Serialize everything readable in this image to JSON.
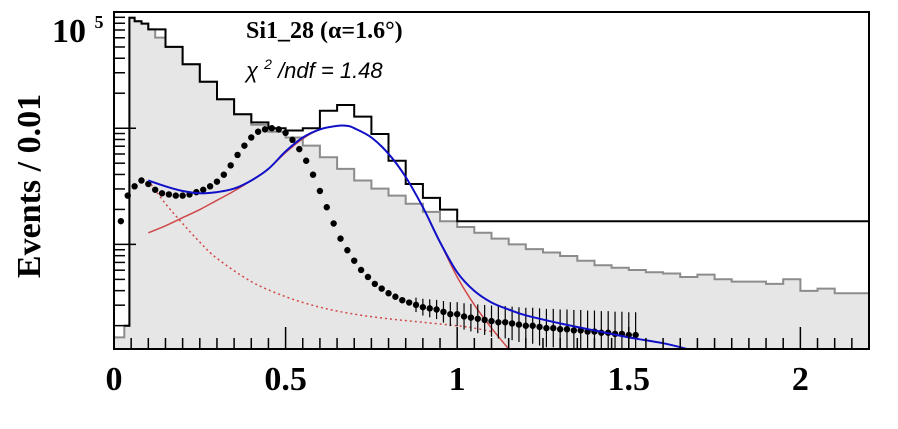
{
  "chart_data": {
    "type": "line",
    "title": "Si1_28 (α=1.6°)",
    "stat_prefix": "χ",
    "stat_sup": "2",
    "stat_rest": "/ndf = 1.48",
    "ylabel": "Events / 0.01",
    "y_top_label_base": "10",
    "y_top_label_exp": "5",
    "xlim": [
      0,
      2.2
    ],
    "x_ticks": [
      0,
      0.5,
      1,
      1.5,
      2
    ],
    "x_tick_labels": [
      "0",
      "0.5",
      "1",
      "1.5",
      "2"
    ],
    "ylim_log10": [
      2.1,
      5.0
    ],
    "y_scale": "log",
    "colors": {
      "gray_fill": "#e6e6e6",
      "gray_line": "#8c8c8c",
      "black_hist": "#000000",
      "fit_total": "#1010c8",
      "fit_component": "#d04848"
    },
    "series": [
      {
        "key": "gray_hist",
        "x": [
          0.0,
          0.03,
          0.045,
          0.06,
          0.08,
          0.1,
          0.12,
          0.15,
          0.2,
          0.25,
          0.3,
          0.35,
          0.4,
          0.45,
          0.5,
          0.55,
          0.6,
          0.65,
          0.7,
          0.75,
          0.8,
          0.85,
          0.9,
          0.95,
          1.0,
          1.05,
          1.1,
          1.15,
          1.2,
          1.25,
          1.3,
          1.35,
          1.4,
          1.45,
          1.5,
          1.55,
          1.6,
          1.65,
          1.7,
          1.75,
          1.8,
          1.85,
          1.9,
          1.95,
          2.0,
          2.05,
          2.1,
          2.15,
          2.2
        ],
        "y": [
          2.2,
          2.3,
          4.95,
          4.92,
          4.9,
          4.85,
          4.78,
          4.7,
          4.55,
          4.4,
          4.25,
          4.12,
          4.03,
          3.97,
          3.92,
          3.85,
          3.75,
          3.65,
          3.55,
          3.48,
          3.42,
          3.35,
          3.28,
          3.2,
          3.15,
          3.1,
          3.05,
          3.0,
          2.96,
          2.93,
          2.9,
          2.86,
          2.82,
          2.8,
          2.78,
          2.76,
          2.75,
          2.72,
          2.74,
          2.7,
          2.68,
          2.68,
          2.66,
          2.7,
          2.6,
          2.62,
          2.58,
          2.58,
          2.55
        ]
      },
      {
        "key": "black_hist",
        "x": [
          0.03,
          0.045,
          0.06,
          0.08,
          0.1,
          0.15,
          0.2,
          0.25,
          0.3,
          0.35,
          0.4,
          0.45,
          0.5,
          0.55,
          0.6,
          0.65,
          0.7,
          0.75,
          0.8,
          0.85,
          0.9,
          0.95,
          1.0
        ],
        "y": [
          2.3,
          4.95,
          4.92,
          4.9,
          4.85,
          4.7,
          4.55,
          4.4,
          4.25,
          4.12,
          4.05,
          4.0,
          3.98,
          4.0,
          4.15,
          4.2,
          4.1,
          3.95,
          3.72,
          3.52,
          3.4,
          3.3,
          3.2
        ]
      },
      {
        "key": "data_points",
        "x": [
          0.02,
          0.04,
          0.06,
          0.08,
          0.1,
          0.12,
          0.14,
          0.16,
          0.18,
          0.2,
          0.22,
          0.24,
          0.26,
          0.28,
          0.3,
          0.32,
          0.34,
          0.36,
          0.38,
          0.4,
          0.42,
          0.44,
          0.46,
          0.48,
          0.5,
          0.52,
          0.54,
          0.56,
          0.58,
          0.6,
          0.62,
          0.64,
          0.66,
          0.68,
          0.7,
          0.72,
          0.74,
          0.76,
          0.78,
          0.8,
          0.82,
          0.84,
          0.86,
          0.88,
          0.9,
          0.92,
          0.94,
          0.96,
          0.98,
          1.0,
          1.02,
          1.04,
          1.06,
          1.08,
          1.1,
          1.12,
          1.14,
          1.16,
          1.18,
          1.2,
          1.22,
          1.24,
          1.26,
          1.28,
          1.3,
          1.32,
          1.34,
          1.36,
          1.38,
          1.4,
          1.42,
          1.44,
          1.46,
          1.48,
          1.5,
          1.52
        ],
        "y": [
          3.2,
          3.42,
          3.5,
          3.55,
          3.52,
          3.47,
          3.44,
          3.43,
          3.42,
          3.42,
          3.43,
          3.45,
          3.47,
          3.5,
          3.54,
          3.6,
          3.68,
          3.77,
          3.85,
          3.92,
          3.97,
          3.99,
          4.0,
          3.99,
          3.96,
          3.9,
          3.82,
          3.72,
          3.6,
          3.46,
          3.32,
          3.18,
          3.05,
          2.95,
          2.86,
          2.78,
          2.72,
          2.66,
          2.62,
          2.58,
          2.55,
          2.52,
          2.5,
          2.48,
          2.46,
          2.45,
          2.44,
          2.42,
          2.4,
          2.4,
          2.38,
          2.37,
          2.36,
          2.35,
          2.34,
          2.33,
          2.33,
          2.32,
          2.31,
          2.3,
          2.3,
          2.29,
          2.28,
          2.28,
          2.27,
          2.27,
          2.26,
          2.26,
          2.25,
          2.25,
          2.24,
          2.24,
          2.23,
          2.23,
          2.22,
          2.22
        ]
      },
      {
        "key": "fit_total",
        "x": [
          0.1,
          0.15,
          0.2,
          0.25,
          0.3,
          0.35,
          0.4,
          0.45,
          0.5,
          0.55,
          0.6,
          0.65,
          0.68,
          0.7,
          0.75,
          0.8,
          0.85,
          0.9,
          0.95,
          1.0,
          1.05,
          1.1,
          1.15,
          1.2,
          1.3,
          1.4,
          1.5,
          1.6,
          1.67
        ],
        "y": [
          3.55,
          3.5,
          3.46,
          3.44,
          3.45,
          3.48,
          3.55,
          3.65,
          3.8,
          3.92,
          3.99,
          4.02,
          4.02,
          4.0,
          3.92,
          3.78,
          3.58,
          3.32,
          3.02,
          2.76,
          2.6,
          2.5,
          2.44,
          2.39,
          2.32,
          2.26,
          2.2,
          2.15,
          2.1
        ]
      },
      {
        "key": "fit_component_peak",
        "x": [
          0.1,
          0.15,
          0.2,
          0.25,
          0.3,
          0.35,
          0.4,
          0.45,
          0.5,
          0.55,
          0.6,
          0.65,
          0.68,
          0.7,
          0.75,
          0.8,
          0.85,
          0.9,
          0.95,
          1.0,
          1.05,
          1.1,
          1.15
        ],
        "y": [
          3.1,
          3.16,
          3.23,
          3.3,
          3.38,
          3.46,
          3.55,
          3.65,
          3.79,
          3.91,
          3.99,
          4.02,
          4.02,
          4.0,
          3.92,
          3.78,
          3.58,
          3.32,
          3.02,
          2.72,
          2.48,
          2.28,
          2.1
        ]
      },
      {
        "key": "fit_component_background",
        "x": [
          0.1,
          0.15,
          0.2,
          0.25,
          0.3,
          0.4,
          0.5,
          0.6,
          0.7,
          0.8,
          0.9,
          1.0,
          1.05,
          1.1
        ],
        "y": [
          3.55,
          3.35,
          3.18,
          3.02,
          2.88,
          2.68,
          2.55,
          2.46,
          2.4,
          2.36,
          2.33,
          2.3,
          2.28,
          2.25
        ]
      }
    ]
  }
}
